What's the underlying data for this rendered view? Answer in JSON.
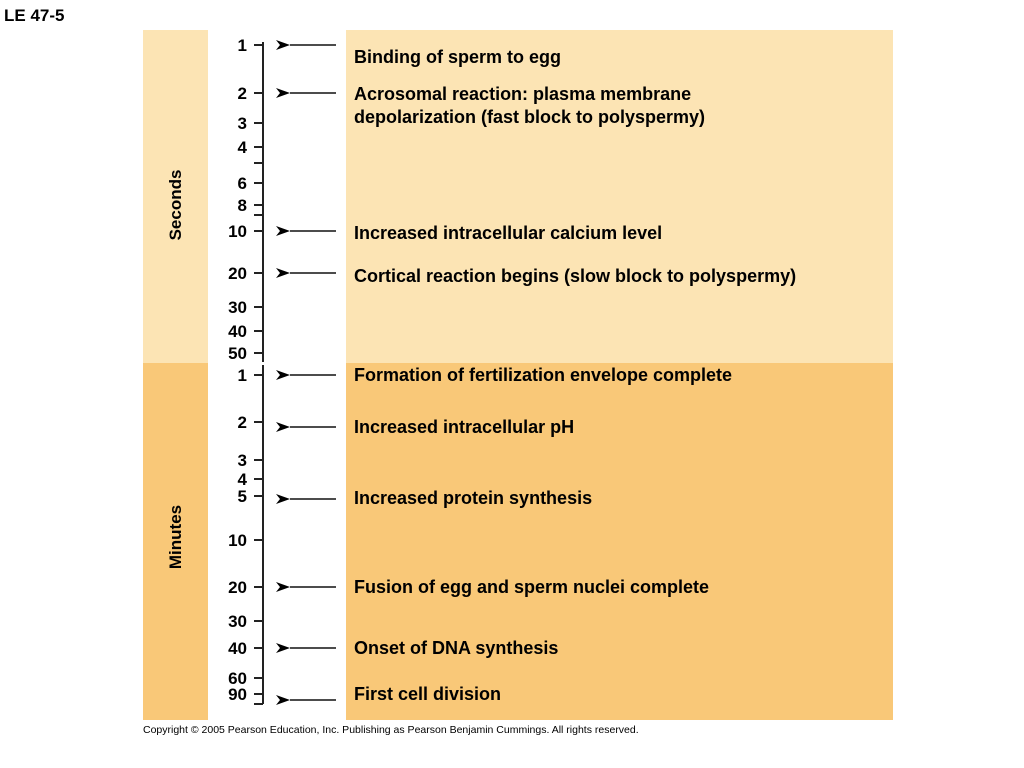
{
  "page_label": "LE 47-5",
  "bands": {
    "seconds_label": "Seconds",
    "minutes_label": "Minutes"
  },
  "scale": {
    "seconds_ticks": [
      "1",
      "2",
      "3",
      "4",
      "",
      "6",
      "8",
      "",
      "10",
      "20",
      "30",
      "40",
      "50"
    ],
    "minutes_ticks": [
      "1",
      "2",
      "3",
      "4",
      "5",
      "10",
      "20",
      "30",
      "40",
      "60",
      "90"
    ]
  },
  "events": [
    {
      "text": "Binding of sperm to egg"
    },
    {
      "text": "Acrosomal reaction: plasma membrane",
      "text2": "depolarization (fast block to polyspermy)"
    },
    {
      "text": "Increased intracellular calcium level"
    },
    {
      "text": "Cortical reaction begins (slow block to polyspermy)"
    },
    {
      "text": "Formation of fertilization envelope complete"
    },
    {
      "text": "Increased intracellular pH"
    },
    {
      "text": "Increased protein synthesis"
    },
    {
      "text": "Fusion of egg and sperm nuclei complete"
    },
    {
      "text": "Onset of DNA synthesis"
    },
    {
      "text": "First cell division"
    }
  ],
  "copyright": "Copyright © 2005 Pearson Education, Inc. Publishing as Pearson Benjamin Cummings. All rights reserved.",
  "colors": {
    "seconds_band": "#fce4b4",
    "minutes_band": "#f9c878"
  }
}
